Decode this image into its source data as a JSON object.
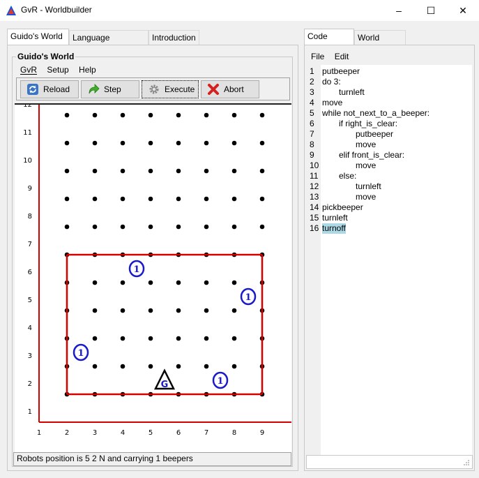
{
  "window": {
    "title": "GvR - Worldbuilder",
    "minimize": "–",
    "maximize": "☐",
    "close": "✕"
  },
  "left_tabs": [
    "Guido's World",
    "Language reference",
    "Introduction"
  ],
  "right_tabs": [
    "Code editor",
    "World editor"
  ],
  "world_panel": {
    "group_title": "Guido's World",
    "menu": [
      "GvR",
      "Setup",
      "Help"
    ],
    "toolbar": {
      "reload": "Reload",
      "step": "Step",
      "execute": "Execute",
      "abort": "Abort"
    },
    "status": "Robots position is 5 2 N and carrying 1 beepers"
  },
  "world": {
    "x_labels": [
      "1",
      "2",
      "3",
      "4",
      "5",
      "6",
      "7",
      "8",
      "9"
    ],
    "y_labels": [
      "1",
      "2",
      "3",
      "4",
      "5",
      "6",
      "7",
      "8",
      "9",
      "10",
      "11",
      "12"
    ],
    "colors": {
      "wall": "#d40000",
      "beeper": "#1a1acc",
      "robot": "#000000"
    },
    "beepers": [
      {
        "x": 4.5,
        "y": 6,
        "count": "1"
      },
      {
        "x": 8.5,
        "y": 5,
        "count": "1"
      },
      {
        "x": 2.5,
        "y": 3,
        "count": "1"
      },
      {
        "x": 7.5,
        "y": 2,
        "count": "1"
      }
    ],
    "robot": {
      "x": 5.5,
      "y": 2,
      "direction": "N",
      "label": "G"
    }
  },
  "code_editor": {
    "menu": [
      "File",
      "Edit"
    ],
    "lines": [
      {
        "n": "1",
        "indent": 0,
        "text": "putbeeper"
      },
      {
        "n": "2",
        "indent": 0,
        "text": "do 3:"
      },
      {
        "n": "3",
        "indent": 1,
        "text": "turnleft"
      },
      {
        "n": "4",
        "indent": 0,
        "text": "move"
      },
      {
        "n": "5",
        "indent": 0,
        "text": "while not_next_to_a_beeper:"
      },
      {
        "n": "6",
        "indent": 1,
        "text": "if right_is_clear:"
      },
      {
        "n": "7",
        "indent": 2,
        "text": "putbeeper"
      },
      {
        "n": "8",
        "indent": 2,
        "text": "move"
      },
      {
        "n": "9",
        "indent": 1,
        "text": "elif front_is_clear:"
      },
      {
        "n": "10",
        "indent": 2,
        "text": "move"
      },
      {
        "n": "11",
        "indent": 1,
        "text": "else:"
      },
      {
        "n": "12",
        "indent": 2,
        "text": "turnleft"
      },
      {
        "n": "13",
        "indent": 2,
        "text": "move"
      },
      {
        "n": "14",
        "indent": 0,
        "text": "pickbeeper"
      },
      {
        "n": "15",
        "indent": 0,
        "text": "turnleft"
      },
      {
        "n": "16",
        "indent": 0,
        "text": "turnoff"
      }
    ],
    "highlighted_line": "16"
  }
}
